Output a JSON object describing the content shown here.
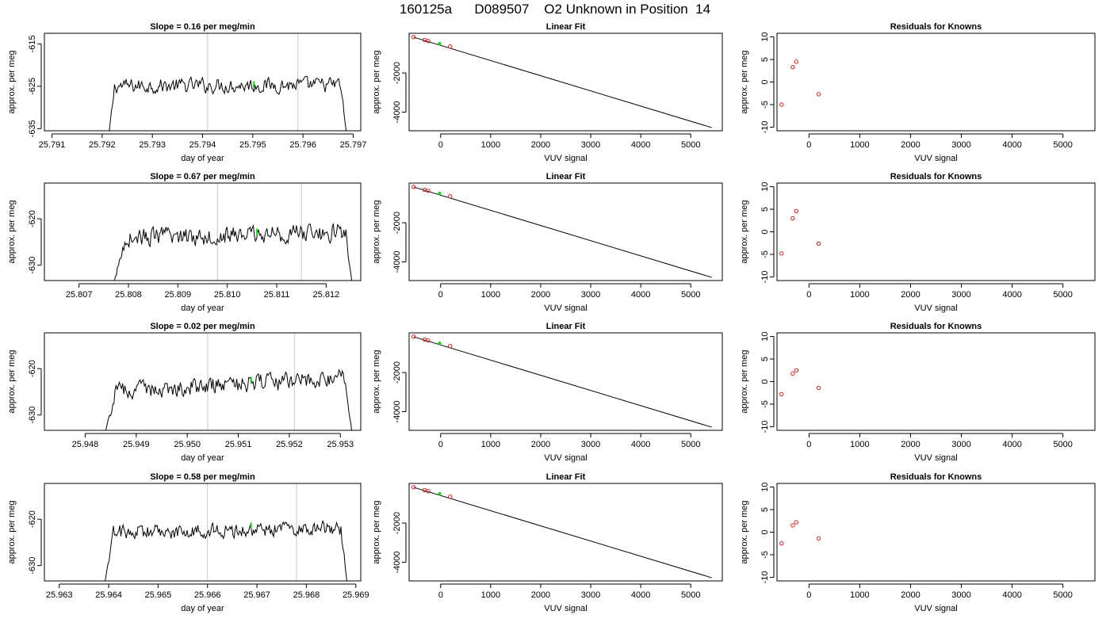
{
  "title": "160125a      D089507    O2 Unknown in Position  14",
  "chart_data": [
    {
      "type": "line",
      "row": 0,
      "title": "Slope =  0.16  per meg/min",
      "xlabel": "day of year",
      "ylabel": "approx. per meg",
      "xlim": [
        25.79085,
        25.79715
      ],
      "ylim": [
        -635.5,
        -612.5
      ],
      "xticks": [
        25.791,
        25.792,
        25.793,
        25.794,
        25.795,
        25.796,
        25.797
      ],
      "xticklabels": [
        "25.791",
        "25.792",
        "25.793",
        "25.794",
        "25.795",
        "25.796",
        "25.797"
      ],
      "yticks": [
        -635,
        -625,
        -615
      ],
      "yticklabels": [
        "-635",
        "-625",
        "-615"
      ],
      "vlines": [
        25.7941,
        25.7959
      ],
      "trace": {
        "start": 25.7921,
        "end": 25.7969,
        "level": -624.8,
        "noise": 1.5,
        "drift": 0.3,
        "rise_end": 25.79225,
        "rise_from": -640,
        "fall_start": 25.79675,
        "fall_to": -640
      },
      "marker": {
        "x": 25.79502,
        "y": -624.6
      }
    },
    {
      "type": "scatter",
      "row": 0,
      "title": "Linear Fit",
      "xlabel": "VUV signal",
      "ylabel": "approx. per meg",
      "xlim": [
        -630,
        5630
      ],
      "ylim": [
        -4950,
        25
      ],
      "xticks": [
        0,
        1000,
        2000,
        3000,
        4000,
        5000
      ],
      "xticklabels": [
        "0",
        "1000",
        "2000",
        "3000",
        "4000",
        "5000"
      ],
      "yticks": [
        -4000,
        -2000
      ],
      "yticklabels": [
        "-4000",
        "-2000"
      ],
      "points": [
        {
          "x": -540,
          "y": -170
        },
        {
          "x": -320,
          "y": -315
        },
        {
          "x": -250,
          "y": -365
        },
        {
          "x": 190,
          "y": -650
        }
      ],
      "fit_line": {
        "x": [
          -540,
          5420
        ],
        "y": [
          -175,
          -4790
        ]
      },
      "unknown": {
        "x": -20,
        "y": -500
      }
    },
    {
      "type": "scatter",
      "row": 0,
      "title": "Residuals for Knowns",
      "xlabel": "VUV signal",
      "ylabel": "approx. per meg",
      "xlim": [
        -630,
        5630
      ],
      "ylim": [
        -10.8,
        10.8
      ],
      "xticks": [
        0,
        1000,
        2000,
        3000,
        4000,
        5000
      ],
      "xticklabels": [
        "0",
        "1000",
        "2000",
        "3000",
        "4000",
        "5000"
      ],
      "yticks": [
        -10,
        -5,
        0,
        5,
        10
      ],
      "yticklabels": [
        "-10",
        "-5",
        "0",
        "5",
        "10"
      ],
      "points": [
        {
          "x": -540,
          "y": -5.0
        },
        {
          "x": -320,
          "y": 3.3
        },
        {
          "x": -250,
          "y": 4.5
        },
        {
          "x": 190,
          "y": -2.7
        }
      ]
    },
    {
      "type": "line",
      "row": 1,
      "title": "Slope =  0.67  per meg/min",
      "xlabel": "day of year",
      "ylabel": "approx. per meg",
      "xlim": [
        25.8063,
        25.8127
      ],
      "ylim": [
        -633.3,
        -612.3
      ],
      "xticks": [
        25.807,
        25.808,
        25.809,
        25.81,
        25.811,
        25.812
      ],
      "xticklabels": [
        "25.807",
        "25.808",
        "25.809",
        "25.810",
        "25.811",
        "25.812"
      ],
      "yticks": [
        -630,
        -620
      ],
      "yticklabels": [
        "-630",
        "-620"
      ],
      "vlines": [
        25.8098,
        25.8115
      ],
      "trace": {
        "start": 25.80765,
        "end": 25.81255,
        "level": -623.5,
        "noise": 1.7,
        "drift": 1.2,
        "rise_end": 25.80795,
        "rise_from": -636,
        "fall_start": 25.8124,
        "fall_to": -636
      },
      "marker": {
        "x": 25.8106,
        "y": -622.8
      }
    },
    {
      "type": "scatter",
      "row": 1,
      "title": "Linear Fit",
      "xlabel": "VUV signal",
      "ylabel": "approx. per meg",
      "xlim": [
        -630,
        5630
      ],
      "ylim": [
        -4950,
        25
      ],
      "xticks": [
        0,
        1000,
        2000,
        3000,
        4000,
        5000
      ],
      "xticklabels": [
        "0",
        "1000",
        "2000",
        "3000",
        "4000",
        "5000"
      ],
      "yticks": [
        -4000,
        -2000
      ],
      "yticklabels": [
        "-4000",
        "-2000"
      ],
      "points": [
        {
          "x": -540,
          "y": -170
        },
        {
          "x": -320,
          "y": -315
        },
        {
          "x": -250,
          "y": -365
        },
        {
          "x": 190,
          "y": -650
        }
      ],
      "fit_line": {
        "x": [
          -540,
          5420
        ],
        "y": [
          -175,
          -4790
        ]
      },
      "unknown": {
        "x": -20,
        "y": -500
      }
    },
    {
      "type": "scatter",
      "row": 1,
      "title": "Residuals for Knowns",
      "xlabel": "VUV signal",
      "ylabel": "approx. per meg",
      "xlim": [
        -630,
        5630
      ],
      "ylim": [
        -10.8,
        10.8
      ],
      "xticks": [
        0,
        1000,
        2000,
        3000,
        4000,
        5000
      ],
      "xticklabels": [
        "0",
        "1000",
        "2000",
        "3000",
        "4000",
        "5000"
      ],
      "yticks": [
        -10,
        -5,
        0,
        5,
        10
      ],
      "yticklabels": [
        "-10",
        "-5",
        "0",
        "5",
        "10"
      ],
      "points": [
        {
          "x": -540,
          "y": -4.8
        },
        {
          "x": -320,
          "y": 3.0
        },
        {
          "x": -250,
          "y": 4.6
        },
        {
          "x": 190,
          "y": -2.6
        }
      ]
    },
    {
      "type": "line",
      "row": 2,
      "title": "Slope =  0.02  per meg/min",
      "xlabel": "day of year",
      "ylabel": "approx. per meg",
      "xlim": [
        25.9472,
        25.9534
      ],
      "ylim": [
        -633.3,
        -612.3
      ],
      "xticks": [
        25.948,
        25.949,
        25.95,
        25.951,
        25.952,
        25.953
      ],
      "xticklabels": [
        "25.948",
        "25.949",
        "25.950",
        "25.951",
        "25.952",
        "25.953"
      ],
      "yticks": [
        -630,
        -620
      ],
      "yticklabels": [
        "-630",
        "-620"
      ],
      "vlines": [
        25.9504,
        25.9521
      ],
      "trace": {
        "start": 25.94835,
        "end": 25.95325,
        "level": -623.5,
        "noise": 1.6,
        "drift": 3.0,
        "rise_end": 25.9486,
        "rise_from": -636,
        "fall_start": 25.9531,
        "fall_to": -636
      },
      "marker": {
        "x": 25.95125,
        "y": -622.5
      }
    },
    {
      "type": "scatter",
      "row": 2,
      "title": "Linear Fit",
      "xlabel": "VUV signal",
      "ylabel": "approx. per meg",
      "xlim": [
        -630,
        5630
      ],
      "ylim": [
        -4950,
        25
      ],
      "xticks": [
        0,
        1000,
        2000,
        3000,
        4000,
        5000
      ],
      "xticklabels": [
        "0",
        "1000",
        "2000",
        "3000",
        "4000",
        "5000"
      ],
      "yticks": [
        -4000,
        -2000
      ],
      "yticklabels": [
        "-4000",
        "-2000"
      ],
      "points": [
        {
          "x": -540,
          "y": -170
        },
        {
          "x": -320,
          "y": -315
        },
        {
          "x": -250,
          "y": -365
        },
        {
          "x": 190,
          "y": -650
        }
      ],
      "fit_line": {
        "x": [
          -540,
          5420
        ],
        "y": [
          -175,
          -4790
        ]
      },
      "unknown": {
        "x": -20,
        "y": -500
      }
    },
    {
      "type": "scatter",
      "row": 2,
      "title": "Residuals for Knowns",
      "xlabel": "VUV signal",
      "ylabel": "approx. per meg",
      "xlim": [
        -630,
        5630
      ],
      "ylim": [
        -10.8,
        10.8
      ],
      "xticks": [
        0,
        1000,
        2000,
        3000,
        4000,
        5000
      ],
      "xticklabels": [
        "0",
        "1000",
        "2000",
        "3000",
        "4000",
        "5000"
      ],
      "yticks": [
        -10,
        -5,
        0,
        5,
        10
      ],
      "yticklabels": [
        "-10",
        "-5",
        "0",
        "5",
        "10"
      ],
      "points": [
        {
          "x": -540,
          "y": -2.8
        },
        {
          "x": -320,
          "y": 1.8
        },
        {
          "x": -250,
          "y": 2.5
        },
        {
          "x": 190,
          "y": -1.4
        }
      ]
    },
    {
      "type": "line",
      "row": 3,
      "title": "Slope =  0.58  per meg/min",
      "xlabel": "day of year",
      "ylabel": "approx. per meg",
      "xlim": [
        25.9627,
        25.9691
      ],
      "ylim": [
        -633.3,
        -612.3
      ],
      "xticks": [
        25.963,
        25.964,
        25.965,
        25.966,
        25.967,
        25.968,
        25.969
      ],
      "xticklabels": [
        "25.963",
        "25.964",
        "25.965",
        "25.966",
        "25.967",
        "25.968",
        "25.969"
      ],
      "yticks": [
        -630,
        -620
      ],
      "yticklabels": [
        "-630",
        "-620"
      ],
      "vlines": [
        25.966,
        25.9678
      ],
      "trace": {
        "start": 25.96388,
        "end": 25.96885,
        "level": -622.5,
        "noise": 1.4,
        "drift": 1.0,
        "rise_end": 25.9641,
        "rise_from": -636,
        "fall_start": 25.9687,
        "fall_to": -636
      },
      "marker": {
        "x": 25.96688,
        "y": -621.4
      }
    },
    {
      "type": "scatter",
      "row": 3,
      "title": "Linear Fit",
      "xlabel": "VUV signal",
      "ylabel": "approx. per meg",
      "xlim": [
        -630,
        5630
      ],
      "ylim": [
        -4950,
        25
      ],
      "xticks": [
        0,
        1000,
        2000,
        3000,
        4000,
        5000
      ],
      "xticklabels": [
        "0",
        "1000",
        "2000",
        "3000",
        "4000",
        "5000"
      ],
      "yticks": [
        -4000,
        -2000
      ],
      "yticklabels": [
        "-4000",
        "-2000"
      ],
      "points": [
        {
          "x": -540,
          "y": -170
        },
        {
          "x": -320,
          "y": -315
        },
        {
          "x": -250,
          "y": -365
        },
        {
          "x": 190,
          "y": -650
        }
      ],
      "fit_line": {
        "x": [
          -540,
          5420
        ],
        "y": [
          -175,
          -4790
        ]
      },
      "unknown": {
        "x": -20,
        "y": -500
      }
    },
    {
      "type": "scatter",
      "row": 3,
      "title": "Residuals for Knowns",
      "xlabel": "VUV signal",
      "ylabel": "approx. per meg",
      "xlim": [
        -630,
        5630
      ],
      "ylim": [
        -10.8,
        10.8
      ],
      "xticks": [
        0,
        1000,
        2000,
        3000,
        4000,
        5000
      ],
      "xticklabels": [
        "0",
        "1000",
        "2000",
        "3000",
        "4000",
        "5000"
      ],
      "yticks": [
        -10,
        -5,
        0,
        5,
        10
      ],
      "yticklabels": [
        "-10",
        "-5",
        "0",
        "5",
        "10"
      ],
      "points": [
        {
          "x": -540,
          "y": -2.5
        },
        {
          "x": -320,
          "y": 1.5
        },
        {
          "x": -250,
          "y": 2.2
        },
        {
          "x": 190,
          "y": -1.4
        }
      ]
    }
  ],
  "colors": {
    "trace": "#000000",
    "vline": "#c8c8c8",
    "known": "#cc2222",
    "unknown": "#22cc22",
    "axis": "#000000"
  }
}
